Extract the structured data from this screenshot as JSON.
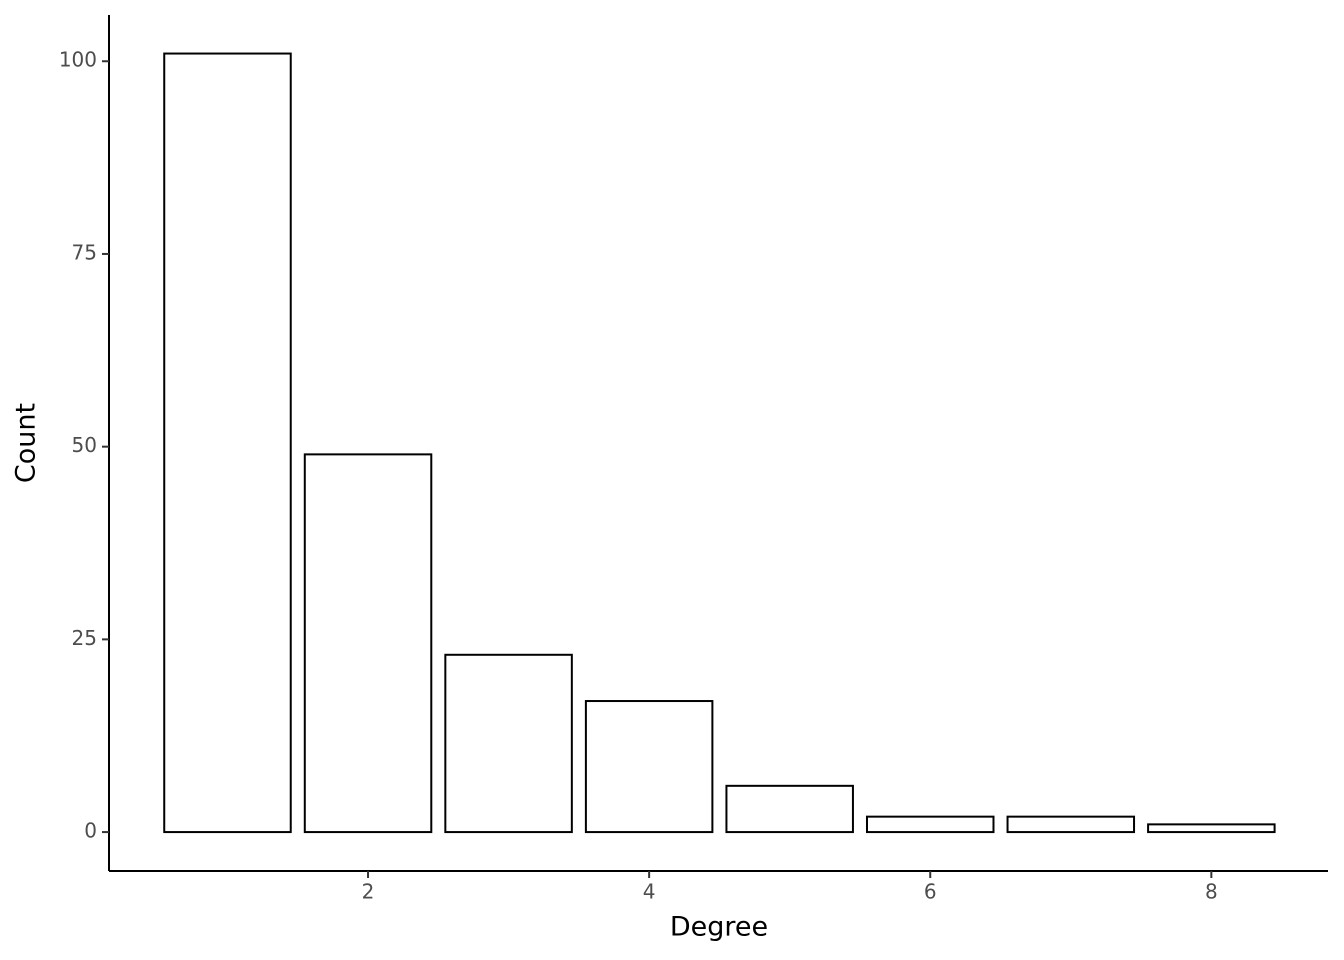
{
  "chart_data": {
    "type": "bar",
    "x": [
      1,
      2,
      3,
      4,
      5,
      6,
      7,
      8
    ],
    "values": [
      101,
      49,
      23,
      17,
      6,
      2,
      2,
      1
    ],
    "fill": "#ffffff",
    "stroke": "#000000",
    "x_label": "Degree",
    "y_label": "Count",
    "xlim": [
      0.157,
      8.83
    ],
    "xticks": [
      2,
      4,
      6,
      8
    ],
    "ylim": [
      -5.05,
      106
    ],
    "yticks": [
      0,
      25,
      50,
      75,
      100
    ],
    "grid": false
  }
}
